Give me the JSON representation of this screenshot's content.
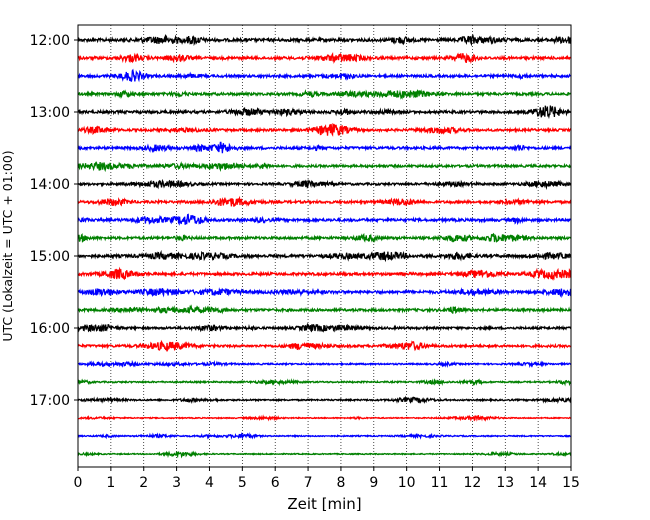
{
  "chart_data": {
    "type": "line",
    "title": "",
    "xlabel": "Zeit  [min]",
    "ylabel": "UTC (Lokalzeit = UTC + 01:00)",
    "xlim": [
      0,
      15
    ],
    "x_ticks": [
      "0",
      "1",
      "2",
      "3",
      "4",
      "5",
      "6",
      "7",
      "8",
      "9",
      "10",
      "11",
      "12",
      "13",
      "14",
      "15"
    ],
    "y_ticks": [
      "12:00",
      "13:00",
      "14:00",
      "15:00",
      "16:00",
      "17:00"
    ],
    "grid": "vertical dotted lines at each minute",
    "trace_interval_min": 15,
    "series": [
      {
        "start": "12:00",
        "color": "#000000",
        "amplitude": 1.0
      },
      {
        "start": "12:15",
        "color": "#ff0000",
        "amplitude": 0.9
      },
      {
        "start": "12:30",
        "color": "#0000ff",
        "amplitude": 0.85
      },
      {
        "start": "12:45",
        "color": "#008000",
        "amplitude": 0.85
      },
      {
        "start": "13:00",
        "color": "#000000",
        "amplitude": 0.9
      },
      {
        "start": "13:15",
        "color": "#ff0000",
        "amplitude": 0.8
      },
      {
        "start": "13:30",
        "color": "#0000ff",
        "amplitude": 0.85
      },
      {
        "start": "13:45",
        "color": "#008000",
        "amplitude": 0.8
      },
      {
        "start": "14:00",
        "color": "#000000",
        "amplitude": 0.75
      },
      {
        "start": "14:15",
        "color": "#ff0000",
        "amplitude": 0.85
      },
      {
        "start": "14:30",
        "color": "#0000ff",
        "amplitude": 0.9
      },
      {
        "start": "14:45",
        "color": "#008000",
        "amplitude": 0.85
      },
      {
        "start": "15:00",
        "color": "#000000",
        "amplitude": 1.0
      },
      {
        "start": "15:15",
        "color": "#ff0000",
        "amplitude": 0.9
      },
      {
        "start": "15:30",
        "color": "#0000ff",
        "amplitude": 0.95
      },
      {
        "start": "15:45",
        "color": "#008000",
        "amplitude": 0.85
      },
      {
        "start": "16:00",
        "color": "#000000",
        "amplitude": 0.75
      },
      {
        "start": "16:15",
        "color": "#ff0000",
        "amplitude": 0.8
      },
      {
        "start": "16:30",
        "color": "#0000ff",
        "amplitude": 0.5
      },
      {
        "start": "16:45",
        "color": "#008000",
        "amplitude": 0.5
      },
      {
        "start": "17:00",
        "color": "#000000",
        "amplitude": 0.5
      },
      {
        "start": "17:15",
        "color": "#ff0000",
        "amplitude": 0.35
      },
      {
        "start": "17:30",
        "color": "#0000ff",
        "amplitude": 0.4
      },
      {
        "start": "17:45",
        "color": "#008000",
        "amplitude": 0.35
      }
    ]
  }
}
